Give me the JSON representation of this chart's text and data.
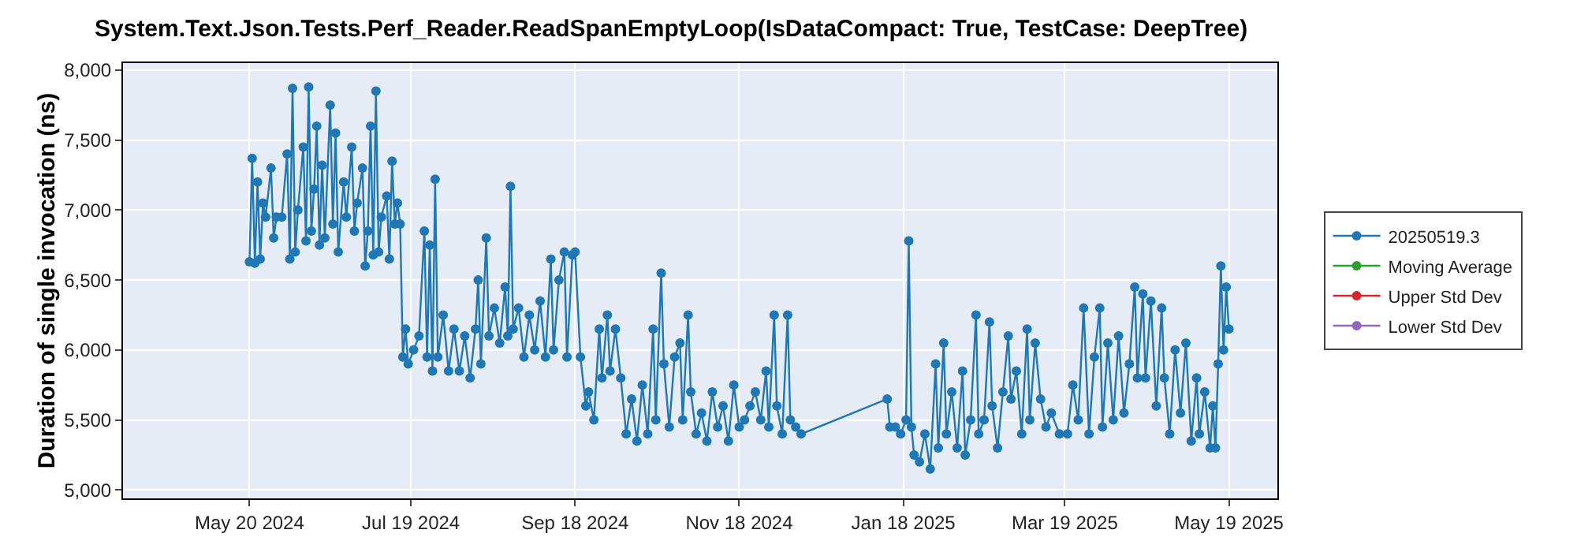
{
  "chart_data": {
    "type": "line",
    "title": "System.Text.Json.Tests.Perf_Reader.ReadSpanEmptyLoop(IsDataCompact: True, TestCase: DeepTree)",
    "ylabel": "Duration of single invocation (ns)",
    "x": [
      "2024-05-20",
      "2024-05-21",
      "2024-05-22",
      "2024-05-23",
      "2024-05-24",
      "2024-05-25",
      "2024-05-26",
      "2024-05-28",
      "2024-05-29",
      "2024-05-30",
      "2024-06-01",
      "2024-06-03",
      "2024-06-04",
      "2024-06-05",
      "2024-06-06",
      "2024-06-07",
      "2024-06-09",
      "2024-06-10",
      "2024-06-11",
      "2024-06-12",
      "2024-06-13",
      "2024-06-14",
      "2024-06-15",
      "2024-06-16",
      "2024-06-17",
      "2024-06-19",
      "2024-06-20",
      "2024-06-21",
      "2024-06-22",
      "2024-06-24",
      "2024-06-25",
      "2024-06-27",
      "2024-06-28",
      "2024-06-29",
      "2024-07-01",
      "2024-07-02",
      "2024-07-03",
      "2024-07-04",
      "2024-07-05",
      "2024-07-06",
      "2024-07-07",
      "2024-07-08",
      "2024-07-10",
      "2024-07-11",
      "2024-07-12",
      "2024-07-13",
      "2024-07-14",
      "2024-07-15",
      "2024-07-16",
      "2024-07-17",
      "2024-07-18",
      "2024-07-20",
      "2024-07-22",
      "2024-07-24",
      "2024-07-25",
      "2024-07-26",
      "2024-07-27",
      "2024-07-28",
      "2024-07-29",
      "2024-07-31",
      "2024-08-02",
      "2024-08-04",
      "2024-08-06",
      "2024-08-08",
      "2024-08-10",
      "2024-08-12",
      "2024-08-13",
      "2024-08-14",
      "2024-08-16",
      "2024-08-17",
      "2024-08-19",
      "2024-08-21",
      "2024-08-23",
      "2024-08-24",
      "2024-08-25",
      "2024-08-26",
      "2024-08-28",
      "2024-08-30",
      "2024-09-01",
      "2024-09-03",
      "2024-09-05",
      "2024-09-07",
      "2024-09-09",
      "2024-09-10",
      "2024-09-12",
      "2024-09-14",
      "2024-09-15",
      "2024-09-17",
      "2024-09-18",
      "2024-09-20",
      "2024-09-22",
      "2024-09-23",
      "2024-09-25",
      "2024-09-27",
      "2024-09-28",
      "2024-09-30",
      "2024-10-01",
      "2024-10-03",
      "2024-10-05",
      "2024-10-07",
      "2024-10-09",
      "2024-10-11",
      "2024-10-13",
      "2024-10-15",
      "2024-10-17",
      "2024-10-18",
      "2024-10-20",
      "2024-10-21",
      "2024-10-23",
      "2024-10-25",
      "2024-10-27",
      "2024-10-28",
      "2024-10-30",
      "2024-10-31",
      "2024-11-02",
      "2024-11-04",
      "2024-11-06",
      "2024-11-08",
      "2024-11-10",
      "2024-11-12",
      "2024-11-14",
      "2024-11-16",
      "2024-11-18",
      "2024-11-20",
      "2024-11-22",
      "2024-11-24",
      "2024-11-26",
      "2024-11-28",
      "2024-11-29",
      "2024-12-01",
      "2024-12-02",
      "2024-12-04",
      "2024-12-06",
      "2024-12-07",
      "2024-12-09",
      "2024-12-11",
      "2025-01-12",
      "2025-01-13",
      "2025-01-15",
      "2025-01-17",
      "2025-01-19",
      "2025-01-20",
      "2025-01-21",
      "2025-01-22",
      "2025-01-24",
      "2025-01-26",
      "2025-01-28",
      "2025-01-30",
      "2025-01-31",
      "2025-02-02",
      "2025-02-03",
      "2025-02-05",
      "2025-02-07",
      "2025-02-09",
      "2025-02-10",
      "2025-02-12",
      "2025-02-14",
      "2025-02-15",
      "2025-02-17",
      "2025-02-19",
      "2025-02-20",
      "2025-02-22",
      "2025-02-24",
      "2025-02-26",
      "2025-02-27",
      "2025-03-01",
      "2025-03-03",
      "2025-03-05",
      "2025-03-06",
      "2025-03-08",
      "2025-03-10",
      "2025-03-12",
      "2025-03-14",
      "2025-03-17",
      "2025-03-20",
      "2025-03-22",
      "2025-03-24",
      "2025-03-26",
      "2025-03-28",
      "2025-03-30",
      "2025-04-01",
      "2025-04-02",
      "2025-04-04",
      "2025-04-06",
      "2025-04-08",
      "2025-04-10",
      "2025-04-12",
      "2025-04-14",
      "2025-04-15",
      "2025-04-17",
      "2025-04-18",
      "2025-04-20",
      "2025-04-22",
      "2025-04-24",
      "2025-04-25",
      "2025-04-27",
      "2025-04-29",
      "2025-05-01",
      "2025-05-03",
      "2025-05-05",
      "2025-05-07",
      "2025-05-08",
      "2025-05-10",
      "2025-05-12",
      "2025-05-13",
      "2025-05-14",
      "2025-05-15",
      "2025-05-16",
      "2025-05-17",
      "2025-05-18",
      "2025-05-19"
    ],
    "series": [
      {
        "name": "20250519.3",
        "color": "#1f77b4",
        "values": [
          6630,
          7370,
          6620,
          7200,
          6650,
          7050,
          6950,
          7300,
          6800,
          6950,
          6950,
          7400,
          6650,
          7870,
          6700,
          7000,
          7450,
          6780,
          7880,
          6850,
          7150,
          7600,
          6750,
          7320,
          6800,
          7750,
          6900,
          7550,
          6700,
          7200,
          6950,
          7450,
          6850,
          7050,
          7300,
          6600,
          6850,
          7600,
          6680,
          7850,
          6700,
          6950,
          7100,
          6650,
          7350,
          6900,
          7050,
          6900,
          5950,
          6150,
          5900,
          6000,
          6100,
          6850,
          5950,
          6750,
          5850,
          7220,
          5950,
          6250,
          5850,
          6150,
          5850,
          6100,
          5800,
          6150,
          6500,
          5900,
          6800,
          6100,
          6300,
          6050,
          6450,
          6100,
          7170,
          6150,
          6300,
          5950,
          6250,
          6000,
          6350,
          5950,
          6650,
          6000,
          6500,
          6700,
          5950,
          6680,
          6700,
          5950,
          5600,
          5700,
          5500,
          6150,
          5800,
          6250,
          5850,
          6150,
          5800,
          5400,
          5650,
          5350,
          5750,
          5400,
          6150,
          5500,
          6550,
          5900,
          5450,
          5950,
          6050,
          5500,
          6250,
          5700,
          5400,
          5550,
          5350,
          5700,
          5450,
          5600,
          5350,
          5750,
          5450,
          5500,
          5600,
          5700,
          5500,
          5850,
          5450,
          6250,
          5600,
          5400,
          6250,
          5500,
          5450,
          5400,
          5650,
          5450,
          5450,
          5400,
          5500,
          6780,
          5450,
          5250,
          5200,
          5400,
          5150,
          5900,
          5300,
          6050,
          5400,
          5700,
          5300,
          5850,
          5250,
          5500,
          6250,
          5400,
          5500,
          6200,
          5600,
          5300,
          5700,
          6100,
          5650,
          5850,
          5400,
          6150,
          5500,
          6050,
          5650,
          5450,
          5550,
          5400,
          5400,
          5750,
          5500,
          6300,
          5400,
          5950,
          6300,
          5450,
          6050,
          5500,
          6100,
          5550,
          5900,
          6450,
          5800,
          6400,
          5800,
          6350,
          5600,
          6300,
          5800,
          5400,
          6000,
          5550,
          6050,
          5350,
          5800,
          5400,
          5700,
          5300,
          5600,
          5300,
          5900,
          6600,
          6000,
          6450,
          6150
        ]
      },
      {
        "name": "Moving Average",
        "color": "#2ca02c",
        "values": [
          null,
          null,
          null,
          null,
          null,
          null,
          null,
          null,
          null,
          null,
          null,
          null,
          null,
          null,
          null,
          null,
          null,
          null,
          null,
          null,
          null,
          null,
          null,
          null,
          null,
          null,
          null,
          null,
          null,
          null,
          null,
          null,
          null,
          null,
          null,
          null,
          null,
          null,
          null,
          null,
          null,
          null,
          null,
          null,
          null,
          null,
          null,
          null,
          null,
          null,
          null,
          null,
          null,
          null,
          null,
          null,
          null,
          null,
          null,
          null,
          null,
          null,
          null,
          null,
          null,
          null,
          null,
          null,
          null,
          null,
          null,
          null,
          null,
          null,
          null,
          null,
          null,
          null,
          null,
          null,
          null,
          null,
          null,
          null,
          null,
          null,
          null,
          null,
          null,
          null,
          null,
          null,
          null,
          null,
          null,
          null,
          null,
          null,
          null,
          null,
          null,
          null,
          null,
          null,
          null,
          null,
          null,
          null,
          null,
          null,
          null,
          null,
          null,
          null,
          null,
          null,
          null,
          null,
          null,
          null,
          null,
          null,
          null,
          null,
          null,
          null,
          null,
          null,
          null,
          null,
          null,
          null,
          null,
          null,
          null,
          null,
          null,
          null,
          null,
          null,
          null,
          null,
          null,
          null,
          null,
          null,
          null,
          null,
          null,
          null,
          null,
          null,
          null,
          null,
          null,
          null,
          null,
          null,
          null,
          null,
          null,
          null,
          null,
          null,
          null,
          null,
          null,
          null,
          null,
          null,
          null,
          null,
          null,
          null,
          null,
          null,
          null,
          null,
          null,
          null,
          null,
          null,
          null,
          null,
          null,
          null,
          null,
          null,
          null,
          null,
          null,
          null,
          null,
          null,
          null,
          null,
          null,
          null,
          null,
          null,
          null,
          null,
          null,
          null,
          null,
          null,
          null,
          null,
          null,
          null,
          null
        ]
      },
      {
        "name": "Upper Std Dev",
        "color": "#d62728",
        "values": [
          null,
          null,
          null,
          null,
          null,
          null,
          null,
          null,
          null,
          null,
          null,
          null,
          null,
          null,
          null,
          null,
          null,
          null,
          null,
          null,
          null,
          null,
          null,
          null,
          null,
          null,
          null,
          null,
          null,
          null,
          null,
          null,
          null,
          null,
          null,
          null,
          null,
          null,
          null,
          null,
          null,
          null,
          null,
          null,
          null,
          null,
          null,
          null,
          null,
          null,
          null,
          null,
          null,
          null,
          null,
          null,
          null,
          null,
          null,
          null,
          null,
          null,
          null,
          null,
          null,
          null,
          null,
          null,
          null,
          null,
          null,
          null,
          null,
          null,
          null,
          null,
          null,
          null,
          null,
          null,
          null,
          null,
          null,
          null,
          null,
          null,
          null,
          null,
          null,
          null,
          null,
          null,
          null,
          null,
          null,
          null,
          null,
          null,
          null,
          null,
          null,
          null,
          null,
          null,
          null,
          null,
          null,
          null,
          null,
          null,
          null,
          null,
          null,
          null,
          null,
          null,
          null,
          null,
          null,
          null,
          null,
          null,
          null,
          null,
          null,
          null,
          null,
          null,
          null,
          null,
          null,
          null,
          null,
          null,
          null,
          null,
          null,
          null,
          null,
          null,
          null,
          null,
          null,
          null,
          null,
          null,
          null,
          null,
          null,
          null,
          null,
          null,
          null,
          null,
          null,
          null,
          null,
          null,
          null,
          null,
          null,
          null,
          null,
          null,
          null,
          null,
          null,
          null,
          null,
          null,
          null,
          null,
          null,
          null,
          null,
          null,
          null,
          null,
          null,
          null,
          null,
          null,
          null,
          null,
          null,
          null,
          null,
          null,
          null,
          null,
          null,
          null,
          null,
          null,
          null,
          null,
          null,
          null,
          null,
          null,
          null,
          null,
          null,
          null,
          null,
          null,
          null,
          null,
          null,
          null,
          null
        ]
      },
      {
        "name": "Lower Std Dev",
        "color": "#9467bd",
        "values": [
          null,
          null,
          null,
          null,
          null,
          null,
          null,
          null,
          null,
          null,
          null,
          null,
          null,
          null,
          null,
          null,
          null,
          null,
          null,
          null,
          null,
          null,
          null,
          null,
          null,
          null,
          null,
          null,
          null,
          null,
          null,
          null,
          null,
          null,
          null,
          null,
          null,
          null,
          null,
          null,
          null,
          null,
          null,
          null,
          null,
          null,
          null,
          null,
          null,
          null,
          null,
          null,
          null,
          null,
          null,
          null,
          null,
          null,
          null,
          null,
          null,
          null,
          null,
          null,
          null,
          null,
          null,
          null,
          null,
          null,
          null,
          null,
          null,
          null,
          null,
          null,
          null,
          null,
          null,
          null,
          null,
          null,
          null,
          null,
          null,
          null,
          null,
          null,
          null,
          null,
          null,
          null,
          null,
          null,
          null,
          null,
          null,
          null,
          null,
          null,
          null,
          null,
          null,
          null,
          null,
          null,
          null,
          null,
          null,
          null,
          null,
          null,
          null,
          null,
          null,
          null,
          null,
          null,
          null,
          null,
          null,
          null,
          null,
          null,
          null,
          null,
          null,
          null,
          null,
          null,
          null,
          null,
          null,
          null,
          null,
          null,
          null,
          null,
          null,
          null,
          null,
          null,
          null,
          null,
          null,
          null,
          null,
          null,
          null,
          null,
          null,
          null,
          null,
          null,
          null,
          null,
          null,
          null,
          null,
          null,
          null,
          null,
          null,
          null,
          null,
          null,
          null,
          null,
          null,
          null,
          null,
          null,
          null,
          null,
          null,
          null,
          null,
          null,
          null,
          null,
          null,
          null,
          null,
          null,
          null,
          null,
          null,
          null,
          null,
          null,
          null,
          null,
          null,
          null,
          null,
          null,
          null,
          null,
          null,
          null,
          null,
          null,
          null,
          null,
          null,
          null,
          null,
          null,
          null,
          null,
          null
        ]
      }
    ],
    "xlim": [
      "2024-04-03",
      "2025-06-06"
    ],
    "xticks": [
      {
        "value": "2024-05-20",
        "label": "May 20 2024"
      },
      {
        "value": "2024-07-19",
        "label": "Jul 19 2024"
      },
      {
        "value": "2024-09-18",
        "label": "Sep 18 2024"
      },
      {
        "value": "2024-11-18",
        "label": "Nov 18 2024"
      },
      {
        "value": "2025-01-18",
        "label": "Jan 18 2025"
      },
      {
        "value": "2025-03-19",
        "label": "Mar 19 2025"
      },
      {
        "value": "2025-05-19",
        "label": "May 19 2025"
      }
    ],
    "ylim": [
      4940,
      8050
    ],
    "yticks": [
      {
        "value": 5000,
        "label": "5,000"
      },
      {
        "value": 5500,
        "label": "5,500"
      },
      {
        "value": 6000,
        "label": "6,000"
      },
      {
        "value": 6500,
        "label": "6,500"
      },
      {
        "value": 7000,
        "label": "7,000"
      },
      {
        "value": 7500,
        "label": "7,500"
      },
      {
        "value": 8000,
        "label": "8,000"
      }
    ],
    "grid": true,
    "legend": "right",
    "marker": "circle",
    "line_style": "solid"
  }
}
